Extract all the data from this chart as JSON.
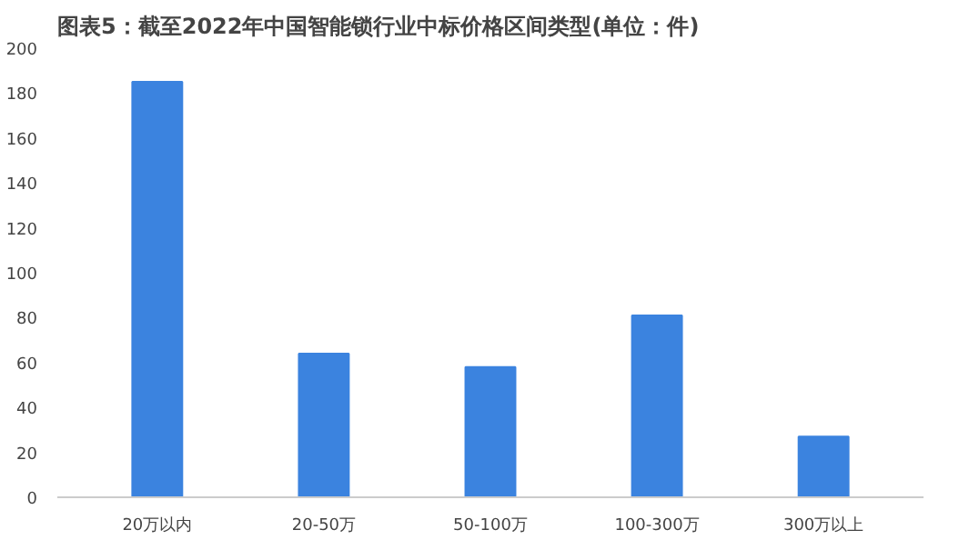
{
  "chart_data": {
    "type": "bar",
    "title": "图表5：截至2022年中国智能锁行业中标价格区间类型(单位：件)",
    "categories": [
      "20万以内",
      "20-50万",
      "50-100万",
      "100-300万",
      "300万以上"
    ],
    "values": [
      185,
      64,
      58,
      81,
      27
    ],
    "color": "#3b83df",
    "ylim": [
      0,
      200
    ],
    "yticks": [
      0,
      20,
      40,
      60,
      80,
      100,
      120,
      140,
      160,
      180,
      200
    ],
    "grid": false
  }
}
